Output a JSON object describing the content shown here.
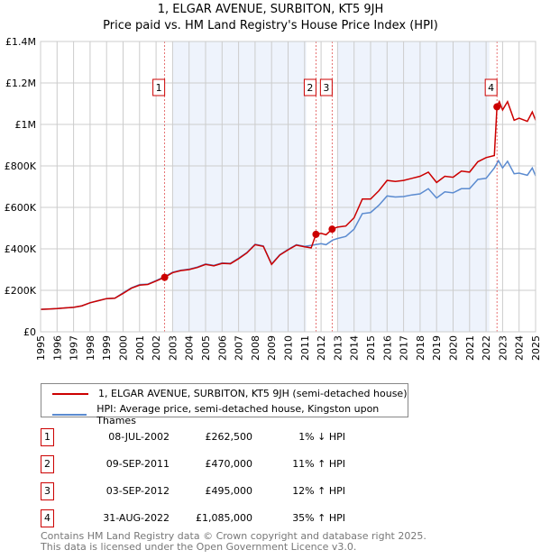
{
  "chart_data": {
    "type": "line",
    "title": "1, ELGAR AVENUE, SURBITON, KT5 9JH",
    "subtitle": "Price paid vs. HM Land Registry's House Price Index (HPI)",
    "xlim": [
      1995,
      2025
    ],
    "ylim": [
      0,
      1400000
    ],
    "y_ticks": [
      {
        "v": 0,
        "label": "£0"
      },
      {
        "v": 200000,
        "label": "£200K"
      },
      {
        "v": 400000,
        "label": "£400K"
      },
      {
        "v": 600000,
        "label": "£600K"
      },
      {
        "v": 800000,
        "label": "£800K"
      },
      {
        "v": 1000000,
        "label": "£1M"
      },
      {
        "v": 1200000,
        "label": "£1.2M"
      },
      {
        "v": 1400000,
        "label": "£1.4M"
      }
    ],
    "x_ticks": [
      "1995",
      "1996",
      "1997",
      "1998",
      "1999",
      "2000",
      "2001",
      "2002",
      "2003",
      "2004",
      "2005",
      "2006",
      "2007",
      "2008",
      "2009",
      "2010",
      "2011",
      "2012",
      "2013",
      "2014",
      "2015",
      "2016",
      "2017",
      "2018",
      "2019",
      "2020",
      "2021",
      "2022",
      "2023",
      "2024",
      "2025"
    ],
    "grid": true,
    "shaded_ranges": [
      [
        2003.0,
        2011.1
      ],
      [
        2013.0,
        2022.2
      ]
    ],
    "series": [
      {
        "name": "1, ELGAR AVENUE, SURBITON, KT5 9JH (semi-detached house)",
        "color": "#cc0000",
        "points": [
          [
            1995,
            108000
          ],
          [
            1995.5,
            110000
          ],
          [
            1996,
            112000
          ],
          [
            1996.5,
            115000
          ],
          [
            1997,
            118000
          ],
          [
            1997.5,
            125000
          ],
          [
            1998,
            140000
          ],
          [
            1998.5,
            150000
          ],
          [
            1999,
            160000
          ],
          [
            1999.5,
            162000
          ],
          [
            2000,
            185000
          ],
          [
            2000.5,
            210000
          ],
          [
            2001,
            225000
          ],
          [
            2001.5,
            228000
          ],
          [
            2002,
            245000
          ],
          [
            2002.52,
            262500
          ],
          [
            2003,
            285000
          ],
          [
            2003.5,
            295000
          ],
          [
            2004,
            300000
          ],
          [
            2004.5,
            310000
          ],
          [
            2005,
            325000
          ],
          [
            2005.5,
            318000
          ],
          [
            2006,
            330000
          ],
          [
            2006.5,
            328000
          ],
          [
            2007,
            352000
          ],
          [
            2007.5,
            380000
          ],
          [
            2008,
            420000
          ],
          [
            2008.5,
            412000
          ],
          [
            2009,
            325000
          ],
          [
            2009.5,
            370000
          ],
          [
            2010,
            395000
          ],
          [
            2010.5,
            418000
          ],
          [
            2011,
            410000
          ],
          [
            2011.4,
            405000
          ],
          [
            2011.69,
            470000
          ],
          [
            2012,
            475000
          ],
          [
            2012.3,
            468000
          ],
          [
            2012.67,
            495000
          ],
          [
            2013,
            505000
          ],
          [
            2013.5,
            510000
          ],
          [
            2014,
            550000
          ],
          [
            2014.5,
            640000
          ],
          [
            2015,
            640000
          ],
          [
            2015.5,
            680000
          ],
          [
            2016,
            730000
          ],
          [
            2016.5,
            725000
          ],
          [
            2017,
            730000
          ],
          [
            2017.5,
            740000
          ],
          [
            2018,
            750000
          ],
          [
            2018.5,
            770000
          ],
          [
            2019,
            720000
          ],
          [
            2019.5,
            750000
          ],
          [
            2020,
            745000
          ],
          [
            2020.5,
            775000
          ],
          [
            2021,
            770000
          ],
          [
            2021.5,
            820000
          ],
          [
            2022,
            840000
          ],
          [
            2022.5,
            850000
          ],
          [
            2022.66,
            1085000
          ],
          [
            2022.8,
            1110000
          ],
          [
            2023,
            1070000
          ],
          [
            2023.3,
            1110000
          ],
          [
            2023.7,
            1020000
          ],
          [
            2024,
            1030000
          ],
          [
            2024.5,
            1015000
          ],
          [
            2024.8,
            1060000
          ],
          [
            2025,
            1020000
          ]
        ]
      },
      {
        "name": "HPI: Average price, semi-detached house, Kingston upon Thames",
        "color": "#5b8bd0",
        "points": [
          [
            1995,
            108000
          ],
          [
            1995.5,
            110000
          ],
          [
            1996,
            112000
          ],
          [
            1996.5,
            115000
          ],
          [
            1997,
            118000
          ],
          [
            1997.5,
            125000
          ],
          [
            1998,
            140000
          ],
          [
            1998.5,
            150000
          ],
          [
            1999,
            160000
          ],
          [
            1999.5,
            162000
          ],
          [
            2000,
            188000
          ],
          [
            2000.5,
            212000
          ],
          [
            2001,
            228000
          ],
          [
            2001.5,
            230000
          ],
          [
            2002,
            247000
          ],
          [
            2002.52,
            266000
          ],
          [
            2003,
            287000
          ],
          [
            2003.5,
            297000
          ],
          [
            2004,
            302000
          ],
          [
            2004.5,
            312000
          ],
          [
            2005,
            327000
          ],
          [
            2005.5,
            320000
          ],
          [
            2006,
            332000
          ],
          [
            2006.5,
            330000
          ],
          [
            2007,
            355000
          ],
          [
            2007.5,
            382000
          ],
          [
            2008,
            422000
          ],
          [
            2008.5,
            414000
          ],
          [
            2009,
            327000
          ],
          [
            2009.5,
            372000
          ],
          [
            2010,
            397000
          ],
          [
            2010.5,
            420000
          ],
          [
            2011,
            412000
          ],
          [
            2011.5,
            418000
          ],
          [
            2012,
            425000
          ],
          [
            2012.3,
            420000
          ],
          [
            2012.7,
            442000
          ],
          [
            2013,
            450000
          ],
          [
            2013.5,
            460000
          ],
          [
            2014,
            495000
          ],
          [
            2014.5,
            570000
          ],
          [
            2015,
            575000
          ],
          [
            2015.5,
            610000
          ],
          [
            2016,
            655000
          ],
          [
            2016.5,
            650000
          ],
          [
            2017,
            652000
          ],
          [
            2017.5,
            660000
          ],
          [
            2018,
            665000
          ],
          [
            2018.5,
            690000
          ],
          [
            2019,
            645000
          ],
          [
            2019.5,
            675000
          ],
          [
            2020,
            670000
          ],
          [
            2020.5,
            690000
          ],
          [
            2021,
            690000
          ],
          [
            2021.5,
            735000
          ],
          [
            2022,
            740000
          ],
          [
            2022.5,
            790000
          ],
          [
            2022.75,
            825000
          ],
          [
            2023,
            790000
          ],
          [
            2023.3,
            822000
          ],
          [
            2023.7,
            762000
          ],
          [
            2024,
            765000
          ],
          [
            2024.5,
            755000
          ],
          [
            2024.8,
            790000
          ],
          [
            2025,
            752000
          ]
        ]
      }
    ],
    "sales": [
      {
        "label": "1",
        "x": 2002.52,
        "y": 262500,
        "date": "08-JUL-2002",
        "price": "£262,500",
        "hpi": "1% ↓ HPI"
      },
      {
        "label": "2",
        "x": 2011.69,
        "y": 470000,
        "date": "09-SEP-2011",
        "price": "£470,000",
        "hpi": "11% ↑ HPI"
      },
      {
        "label": "3",
        "x": 2012.67,
        "y": 495000,
        "date": "03-SEP-2012",
        "price": "£495,000",
        "hpi": "12% ↑ HPI"
      },
      {
        "label": "4",
        "x": 2022.66,
        "y": 1085000,
        "date": "31-AUG-2022",
        "price": "£1,085,000",
        "hpi": "35% ↑ HPI"
      }
    ],
    "legend": {
      "placement": "bottom",
      "entries": [
        "1, ELGAR AVENUE, SURBITON, KT5 9JH (semi-detached house)",
        "HPI: Average price, semi-detached house, Kingston upon Thames"
      ]
    }
  },
  "footer": {
    "line1": "Contains HM Land Registry data © Crown copyright and database right 2025.",
    "line2": "This data is licensed under the Open Government Licence v3.0."
  }
}
